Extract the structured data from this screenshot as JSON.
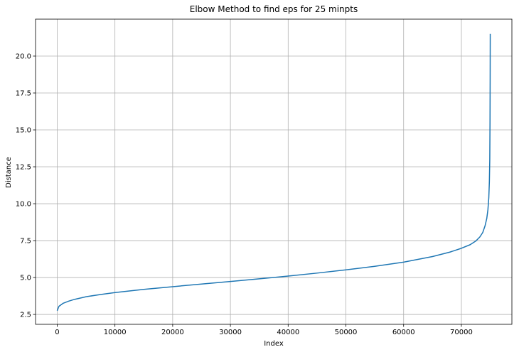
{
  "chart_data": {
    "type": "line",
    "title": "Elbow Method to find eps for 25 minpts",
    "xlabel": "Index",
    "ylabel": "Distance",
    "xlim": [
      -3750,
      78750
    ],
    "ylim": [
      1.83,
      22.5
    ],
    "grid": true,
    "xticks": [
      0,
      10000,
      20000,
      30000,
      40000,
      50000,
      60000,
      70000
    ],
    "xtick_labels": [
      "0",
      "10000",
      "20000",
      "30000",
      "40000",
      "50000",
      "60000",
      "70000"
    ],
    "yticks": [
      2.5,
      5.0,
      7.5,
      10.0,
      12.5,
      15.0,
      17.5,
      20.0
    ],
    "ytick_labels": [
      "2.5",
      "5.0",
      "7.5",
      "10.0",
      "12.5",
      "15.0",
      "17.5",
      "20.0"
    ],
    "series": [
      {
        "color": "#1f77b4",
        "x": [
          0,
          300,
          1000,
          2000,
          3000,
          5000,
          7500,
          10000,
          15000,
          20000,
          25000,
          30000,
          35000,
          40000,
          45000,
          50000,
          55000,
          60000,
          65000,
          68000,
          70000,
          71500,
          72500,
          73200,
          73700,
          74100,
          74400,
          74600,
          74750,
          74850,
          74920,
          74960,
          74985,
          75000
        ],
        "y": [
          2.75,
          3.05,
          3.25,
          3.4,
          3.52,
          3.7,
          3.85,
          3.98,
          4.2,
          4.38,
          4.56,
          4.73,
          4.91,
          5.1,
          5.3,
          5.52,
          5.76,
          6.04,
          6.42,
          6.72,
          6.98,
          7.22,
          7.47,
          7.75,
          8.05,
          8.5,
          9.0,
          9.6,
          10.4,
          11.5,
          13.0,
          15.5,
          18.5,
          21.5
        ]
      }
    ]
  }
}
